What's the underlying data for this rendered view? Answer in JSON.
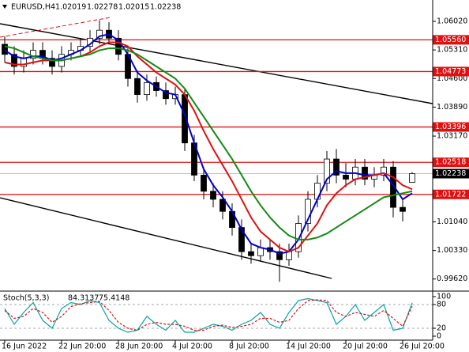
{
  "chart_data": [
    {
      "type": "candlestick",
      "title": "EURUSD,H4",
      "categories": [
        "16 Jun 2022",
        null,
        null,
        null,
        null,
        null,
        "22 Jun 20:00",
        null,
        null,
        null,
        null,
        null,
        "28 Jun 20:00",
        null,
        null,
        null,
        null,
        null,
        "4 Jul 20:00",
        null,
        null,
        null,
        null,
        null,
        "8 Jul 20:00",
        null,
        null,
        null,
        null,
        null,
        "14 Jul 20:00",
        null,
        null,
        null,
        null,
        null,
        "20 Jul 20:00",
        null,
        null,
        null,
        null,
        null,
        "26 Jul 20:00",
        null
      ],
      "open": [
        1.0545,
        1.052,
        1.049,
        1.051,
        1.053,
        1.051,
        1.049,
        1.052,
        1.053,
        1.054,
        1.056,
        1.058,
        1.056,
        1.052,
        1.046,
        1.042,
        1.045,
        1.043,
        1.041,
        1.042,
        1.03,
        1.022,
        1.018,
        1.016,
        1.013,
        1.009,
        1.003,
        1.002,
        1.004,
        1.003,
        1.001,
        1.003,
        1.01,
        1.016,
        1.02,
        1.026,
        1.022,
        1.021,
        1.024,
        1.021,
        1.022,
        1.024,
        1.014,
        1.02019
      ],
      "high": [
        1.0565,
        1.054,
        1.053,
        1.055,
        1.055,
        1.053,
        1.054,
        1.055,
        1.056,
        1.058,
        1.0605,
        1.06,
        1.058,
        1.0535,
        1.048,
        1.047,
        1.0465,
        1.045,
        1.044,
        1.0435,
        1.032,
        1.024,
        1.02,
        1.018,
        1.015,
        1.011,
        1.005,
        1.006,
        1.006,
        1.005,
        1.005,
        1.012,
        1.018,
        1.022,
        1.028,
        1.0285,
        1.025,
        1.026,
        1.026,
        1.024,
        1.026,
        1.0255,
        1.016,
        1.02278
      ],
      "low": [
        1.05,
        1.047,
        1.0475,
        1.0495,
        1.0495,
        1.047,
        1.0475,
        1.0505,
        1.0515,
        1.0525,
        1.0545,
        1.0545,
        1.0505,
        1.044,
        1.04,
        1.0405,
        1.0415,
        1.0395,
        1.0395,
        1.028,
        1.0205,
        1.016,
        1.014,
        1.011,
        1.007,
        1.001,
        1.0,
        1.0005,
        1.001,
        0.9955,
        0.9995,
        1.0015,
        1.008,
        1.014,
        1.018,
        1.02,
        1.019,
        1.0195,
        1.0195,
        1.019,
        1.0205,
        1.0115,
        1.0105,
        1.02015
      ],
      "close": [
        1.052,
        1.049,
        1.051,
        1.053,
        1.051,
        1.049,
        1.052,
        1.053,
        1.054,
        1.056,
        1.058,
        1.056,
        1.052,
        1.046,
        1.042,
        1.045,
        1.043,
        1.041,
        1.042,
        1.03,
        1.022,
        1.018,
        1.016,
        1.013,
        1.009,
        1.003,
        1.002,
        1.004,
        1.003,
        1.001,
        1.003,
        1.01,
        1.016,
        1.02,
        1.026,
        1.022,
        1.021,
        1.024,
        1.021,
        1.022,
        1.024,
        1.014,
        1.013,
        1.02238
      ],
      "up_color": "#ffffff",
      "down_color": "#000000",
      "series": [
        {
          "color": "#0000cc",
          "values": [
            1.053,
            1.0515,
            1.051,
            1.0515,
            1.0515,
            1.0505,
            1.051,
            1.052,
            1.053,
            1.0545,
            1.0565,
            1.057,
            1.0555,
            1.052,
            1.0475,
            1.0455,
            1.044,
            1.0425,
            1.042,
            1.037,
            1.03,
            1.0235,
            1.0195,
            1.0165,
            1.013,
            1.0085,
            1.005,
            1.004,
            1.0035,
            1.0025,
            1.003,
            1.006,
            1.011,
            1.016,
            1.021,
            1.023,
            1.0225,
            1.0225,
            1.022,
            1.022,
            1.0225,
            1.0195,
            1.016,
            1.0175
          ]
        },
        {
          "color": "#e01010",
          "values": [
            1.05,
            1.0495,
            1.0495,
            1.05,
            1.0505,
            1.0505,
            1.0505,
            1.051,
            1.0515,
            1.0525,
            1.054,
            1.055,
            1.055,
            1.054,
            1.0515,
            1.0495,
            1.0475,
            1.046,
            1.0445,
            1.042,
            1.038,
            1.033,
            1.0285,
            1.0245,
            1.0205,
            1.016,
            1.0115,
            1.008,
            1.006,
            1.004,
            1.003,
            1.004,
            1.007,
            1.01,
            1.0145,
            1.0175,
            1.0195,
            1.021,
            1.0215,
            1.022,
            1.0225,
            1.0215,
            1.0195,
            1.0185
          ]
        },
        {
          "color": "#138a13",
          "values": [
            1.054,
            1.0535,
            1.0525,
            1.0515,
            1.051,
            1.0505,
            1.0505,
            1.051,
            1.0515,
            1.052,
            1.053,
            1.0535,
            1.0535,
            1.053,
            1.052,
            1.0505,
            1.049,
            1.0475,
            1.046,
            1.0435,
            1.04,
            1.0365,
            1.033,
            1.0295,
            1.026,
            1.022,
            1.018,
            1.0145,
            1.0115,
            1.009,
            1.007,
            1.006,
            1.006,
            1.0065,
            1.0075,
            1.009,
            1.0105,
            1.012,
            1.0135,
            1.015,
            1.0165,
            1.017,
            1.0175,
            1.018
          ]
        }
      ],
      "levels": [
        {
          "value": 1.0556,
          "label": "1.05560"
        },
        {
          "value": 1.04773,
          "label": "1.04773"
        },
        {
          "value": 1.03396,
          "label": "1.03396"
        },
        {
          "value": 1.02518,
          "label": "1.02518"
        },
        {
          "value": 1.01722,
          "label": "1.01722"
        }
      ],
      "level_color": "#e01010",
      "ylim": [
        0.9934,
        1.0655
      ],
      "yticks": [
        {
          "value": 1.0602,
          "label": "1.06020"
        },
        {
          "value": 1.0531,
          "label": "1.05310"
        },
        {
          "value": 1.046,
          "label": "1.04600"
        },
        {
          "value": 1.0389,
          "label": "1.03890"
        },
        {
          "value": 1.0317,
          "label": "1.03170"
        },
        {
          "value": 1.0104,
          "label": "1.01040"
        },
        {
          "value": 1.0033,
          "label": "1.00330"
        },
        {
          "value": 0.9962,
          "label": "0.99620"
        }
      ]
    },
    {
      "type": "line",
      "title": "Stoch(5,3,3)",
      "series": [
        {
          "color": "#00a6a6",
          "dashed": false,
          "values": [
            70,
            30,
            60,
            85,
            40,
            20,
            70,
            85,
            80,
            90,
            85,
            40,
            20,
            10,
            15,
            50,
            30,
            15,
            40,
            10,
            10,
            20,
            30,
            25,
            15,
            30,
            40,
            60,
            30,
            20,
            60,
            90,
            95,
            90,
            85,
            30,
            50,
            80,
            40,
            60,
            80,
            15,
            20,
            84.3137
          ]
        },
        {
          "color": "#e01010",
          "dashed": true,
          "values": [
            65,
            45,
            50,
            70,
            60,
            35,
            50,
            75,
            82,
            85,
            88,
            65,
            35,
            20,
            15,
            30,
            35,
            30,
            30,
            25,
            15,
            15,
            25,
            28,
            22,
            25,
            30,
            45,
            45,
            35,
            40,
            70,
            90,
            92,
            90,
            60,
            50,
            60,
            55,
            50,
            65,
            45,
            25,
            75.4148
          ]
        }
      ],
      "levels": [
        80,
        20
      ],
      "ylim": [
        -10,
        112
      ],
      "yticks": [
        100,
        80,
        20,
        0
      ]
    }
  ]
}
